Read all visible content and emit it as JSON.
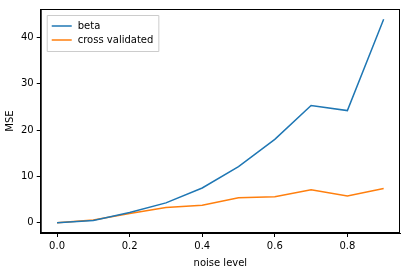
{
  "chart_data": {
    "type": "line",
    "x_label": "noise level",
    "y_label": "MSE",
    "x": [
      0.0,
      0.1,
      0.2,
      0.3,
      0.4,
      0.5,
      0.6,
      0.7,
      0.8,
      0.9
    ],
    "series": [
      {
        "name": "beta",
        "color": "#1f77b4",
        "values": [
          0.0,
          0.5,
          2.2,
          4.3,
          7.5,
          12.1,
          18.0,
          25.3,
          24.2,
          43.9
        ]
      },
      {
        "name": "cross validated",
        "color": "#ff7f0e",
        "values": [
          0.0,
          0.6,
          2.0,
          3.3,
          3.8,
          5.4,
          5.6,
          7.1,
          5.8,
          7.4
        ]
      }
    ],
    "xlim": [
      -0.045,
      0.945
    ],
    "xticks": [
      {
        "value": 0.0,
        "label": "0.0"
      },
      {
        "value": 0.2,
        "label": "0.2"
      },
      {
        "value": 0.4,
        "label": "0.4"
      },
      {
        "value": 0.6,
        "label": "0.6"
      },
      {
        "value": 0.8,
        "label": "0.8"
      }
    ],
    "ylim": [
      -2.2,
      46.1
    ],
    "yticks": [
      0,
      10,
      20,
      30,
      40
    ],
    "grid": false,
    "legend": "upper left"
  }
}
